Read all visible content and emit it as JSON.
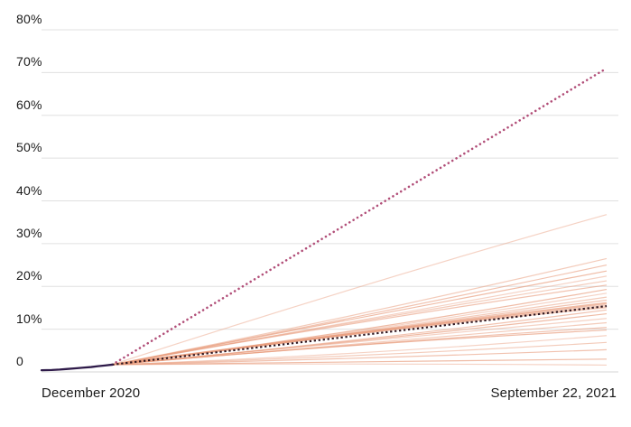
{
  "figure": {
    "background": "#ffffff"
  },
  "colors": {
    "gridline": "#e0e0e0",
    "zero_line": "#d6d6d6",
    "axis_text": "#1a1a1a",
    "historical_line": "#2e1a49",
    "median_dotted_line": "#2f161f",
    "pace_dotted_line": "#b14e78",
    "simulation_line": "#e89c7d"
  },
  "chart_data": {
    "type": "line",
    "title": "",
    "y_axis": {
      "unit": "percent",
      "range": [
        0,
        84
      ],
      "gridlines": true,
      "ticks": [
        {
          "label": "80%",
          "value": 80
        },
        {
          "label": "70%",
          "value": 70
        },
        {
          "label": "60%",
          "value": 60
        },
        {
          "label": "50%",
          "value": 50
        },
        {
          "label": "40%",
          "value": 40
        },
        {
          "label": "30%",
          "value": 30
        },
        {
          "label": "20%",
          "value": 20
        },
        {
          "label": "10%",
          "value": 10
        },
        {
          "label": "0",
          "value": 0
        }
      ]
    },
    "x_axis": {
      "left_label": "December 2020",
      "right_label": "September 22, 2021"
    },
    "series": [
      {
        "name": "vaccinations-to-date",
        "style": "solid",
        "color_key": "historical_line",
        "points": [
          [
            0.0,
            0.4
          ],
          [
            0.018,
            0.45
          ],
          [
            0.032,
            0.55
          ],
          [
            0.046,
            0.7
          ],
          [
            0.06,
            0.85
          ],
          [
            0.074,
            1.0
          ],
          [
            0.088,
            1.15
          ],
          [
            0.1,
            1.35
          ],
          [
            0.112,
            1.5
          ],
          [
            0.125,
            1.7
          ]
        ]
      },
      {
        "name": "pace-needed-projection",
        "style": "dotted-round",
        "color_key": "pace_dotted_line",
        "points": [
          [
            0.125,
            1.7
          ],
          [
            1.0,
            71.0
          ]
        ]
      },
      {
        "name": "median-projection",
        "style": "dotted-square",
        "color_key": "median_dotted_line",
        "points": [
          [
            0.125,
            1.7
          ],
          [
            1.0,
            15.4
          ]
        ]
      },
      {
        "name": "simulated-scenarios",
        "style": "fan",
        "color_key": "simulation_line",
        "start": [
          0.125,
          1.7
        ],
        "end_x": 1.0,
        "final_values": [
          36.8,
          26.5,
          25.0,
          23.6,
          22.4,
          21.3,
          20.3,
          19.3,
          18.4,
          17.5,
          16.8,
          16.1,
          15.6,
          15.1,
          14.5,
          13.6,
          12.5,
          11.5,
          10.4,
          9.8,
          8.5,
          6.9,
          5.2,
          3.0,
          1.6
        ]
      }
    ]
  }
}
